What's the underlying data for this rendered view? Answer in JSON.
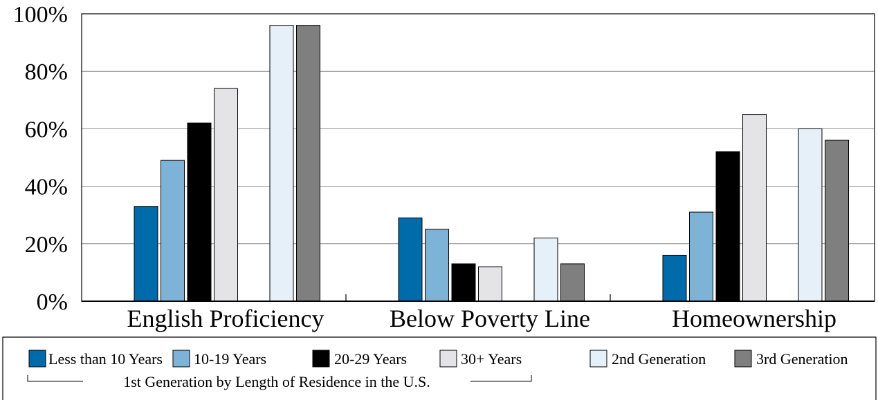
{
  "chart_data": {
    "type": "bar",
    "categories": [
      "English Proficiency",
      "Below Poverty Line",
      "Homeownership"
    ],
    "series": [
      {
        "name": "Less than 10 Years",
        "color": "#006bab",
        "values": [
          33,
          29,
          16
        ]
      },
      {
        "name": "10-19 Years",
        "color": "#7db3d6",
        "values": [
          49,
          25,
          31
        ]
      },
      {
        "name": "20-29 Years",
        "color": "#000000",
        "values": [
          62,
          13,
          52
        ]
      },
      {
        "name": "30+ Years",
        "color": "#e4e4e6",
        "values": [
          74,
          12,
          65
        ]
      },
      {
        "name": "2nd Generation",
        "color": "#e5f0f8",
        "values": [
          96,
          22,
          60
        ]
      },
      {
        "name": "3rd Generation",
        "color": "#7f7f7f",
        "values": [
          96,
          13,
          56
        ]
      }
    ],
    "ylim": [
      0,
      100
    ],
    "yticks": [
      "0%",
      "20%",
      "40%",
      "60%",
      "80%",
      "100%"
    ],
    "grid": true,
    "legend_position": "bottom",
    "legend_group_label": "1st Generation by Length of Residence in the U.S.",
    "title": "",
    "xlabel": "",
    "ylabel": ""
  }
}
